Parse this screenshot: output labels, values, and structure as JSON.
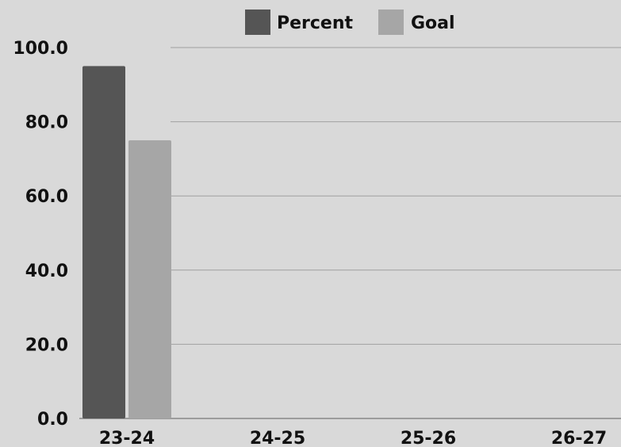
{
  "chart_data": {
    "type": "bar",
    "categories": [
      "23-24",
      "24-25",
      "25-26",
      "26-27"
    ],
    "series": [
      {
        "name": "Percent",
        "values": [
          95,
          null,
          null,
          null
        ],
        "color": "#555555"
      },
      {
        "name": "Goal",
        "values": [
          75,
          null,
          null,
          null
        ],
        "color": "#a6a6a6"
      }
    ],
    "ylim": [
      0,
      100
    ],
    "yticks": [
      "0.0",
      "20.0",
      "40.0",
      "60.0",
      "80.0",
      "100.0"
    ],
    "ytick_values": [
      0,
      20,
      40,
      60,
      80,
      100
    ],
    "grid": true,
    "legend_position": "top-center",
    "gridline_color": "#a0a0a0",
    "axis_color": "#888888"
  }
}
